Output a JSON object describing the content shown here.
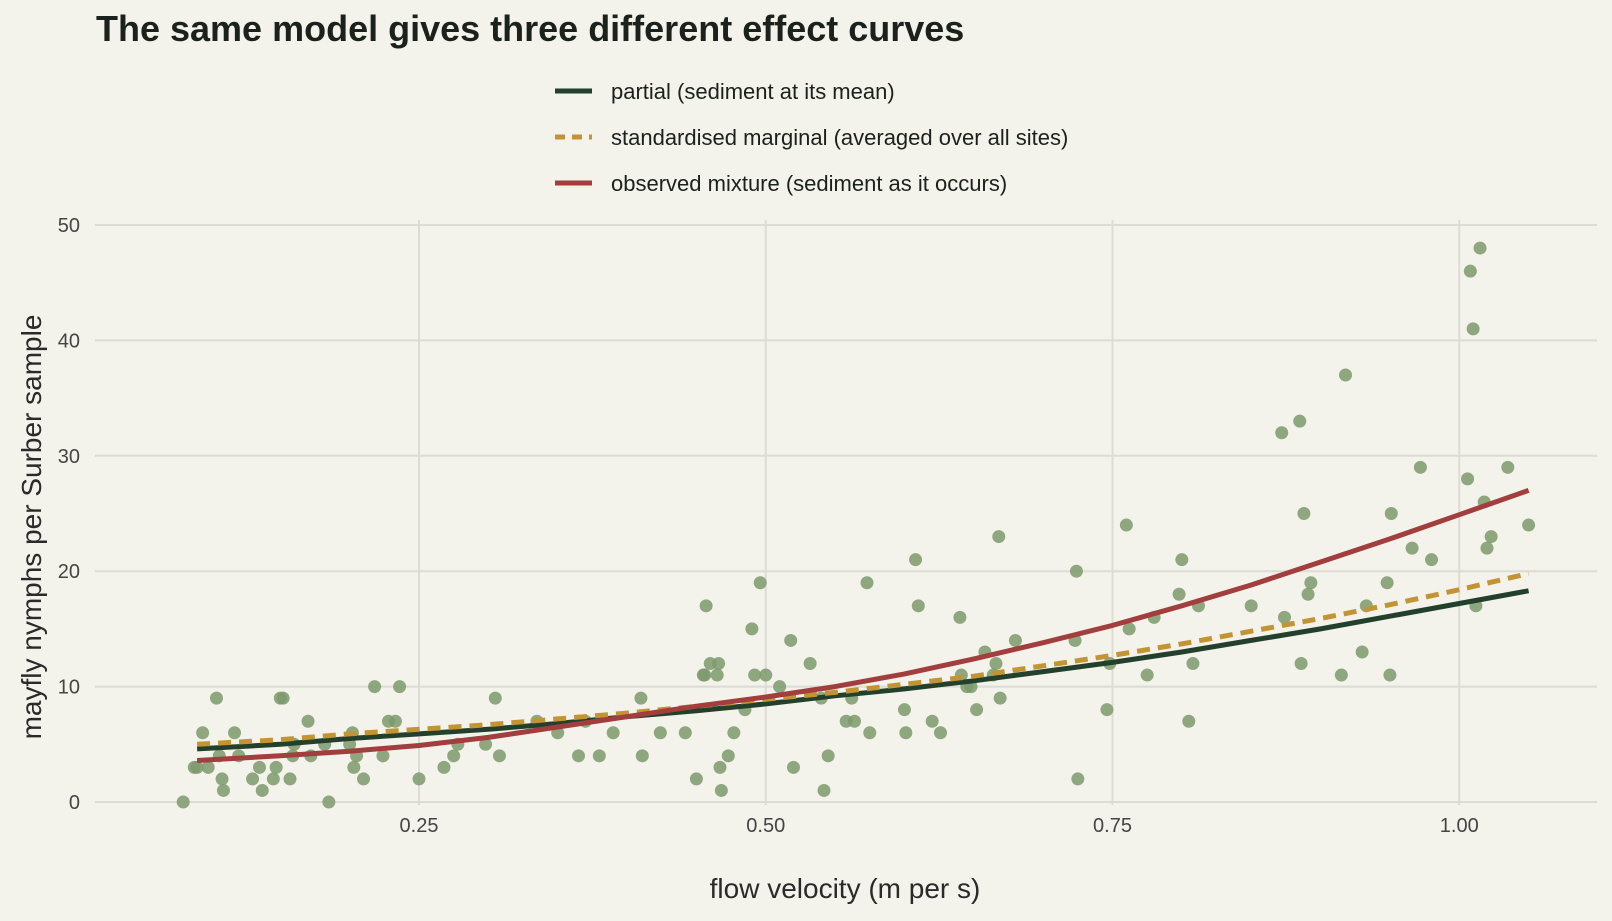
{
  "chart_data": {
    "type": "scatter",
    "title": "The same model gives three different effect curves",
    "xlabel": "flow velocity (m per s)",
    "ylabel": "mayfly nymphs per Surber sample",
    "xlim": [
      0.045,
      1.085
    ],
    "ylim": [
      -1.5,
      51
    ],
    "x_ticks": [
      0.25,
      0.5,
      0.75,
      1.0
    ],
    "x_tick_labels": [
      "0.25",
      "0.50",
      "0.75",
      "1.00"
    ],
    "y_ticks": [
      0,
      10,
      20,
      30,
      40,
      50
    ],
    "y_tick_labels": [
      "0",
      "10",
      "20",
      "30",
      "40",
      "50"
    ],
    "grid": true,
    "legend_position": "top-center",
    "points_color": "#7d9a6c",
    "points": [
      [
        0.08,
        0
      ],
      [
        0.088,
        3
      ],
      [
        0.09,
        3
      ],
      [
        0.094,
        6
      ],
      [
        0.098,
        3
      ],
      [
        0.104,
        9
      ],
      [
        0.106,
        4
      ],
      [
        0.108,
        2
      ],
      [
        0.109,
        1
      ],
      [
        0.117,
        6
      ],
      [
        0.12,
        4
      ],
      [
        0.13,
        2
      ],
      [
        0.135,
        3
      ],
      [
        0.137,
        1
      ],
      [
        0.145,
        2
      ],
      [
        0.147,
        3
      ],
      [
        0.15,
        9
      ],
      [
        0.152,
        9
      ],
      [
        0.157,
        2
      ],
      [
        0.159,
        4
      ],
      [
        0.16,
        5
      ],
      [
        0.17,
        7
      ],
      [
        0.172,
        4
      ],
      [
        0.182,
        5
      ],
      [
        0.185,
        0
      ],
      [
        0.2,
        5
      ],
      [
        0.202,
        6
      ],
      [
        0.203,
        3
      ],
      [
        0.205,
        4
      ],
      [
        0.21,
        2
      ],
      [
        0.218,
        10
      ],
      [
        0.224,
        4
      ],
      [
        0.228,
        7
      ],
      [
        0.233,
        7
      ],
      [
        0.236,
        10
      ],
      [
        0.25,
        2
      ],
      [
        0.268,
        3
      ],
      [
        0.275,
        4
      ],
      [
        0.278,
        5
      ],
      [
        0.298,
        5
      ],
      [
        0.305,
        9
      ],
      [
        0.308,
        4
      ],
      [
        0.335,
        7
      ],
      [
        0.35,
        6
      ],
      [
        0.365,
        4
      ],
      [
        0.37,
        7
      ],
      [
        0.38,
        4
      ],
      [
        0.39,
        6
      ],
      [
        0.41,
        9
      ],
      [
        0.411,
        4
      ],
      [
        0.424,
        6
      ],
      [
        0.442,
        6
      ],
      [
        0.45,
        2
      ],
      [
        0.455,
        11
      ],
      [
        0.456,
        11
      ],
      [
        0.457,
        17
      ],
      [
        0.46,
        12
      ],
      [
        0.465,
        11
      ],
      [
        0.466,
        12
      ],
      [
        0.467,
        3
      ],
      [
        0.468,
        1
      ],
      [
        0.473,
        4
      ],
      [
        0.477,
        6
      ],
      [
        0.485,
        8
      ],
      [
        0.49,
        15
      ],
      [
        0.492,
        11
      ],
      [
        0.496,
        19
      ],
      [
        0.5,
        11
      ],
      [
        0.51,
        10
      ],
      [
        0.518,
        14
      ],
      [
        0.52,
        3
      ],
      [
        0.532,
        12
      ],
      [
        0.54,
        9
      ],
      [
        0.542,
        1
      ],
      [
        0.545,
        4
      ],
      [
        0.558,
        7
      ],
      [
        0.562,
        9
      ],
      [
        0.564,
        7
      ],
      [
        0.573,
        19
      ],
      [
        0.575,
        6
      ],
      [
        0.6,
        8
      ],
      [
        0.601,
        6
      ],
      [
        0.608,
        21
      ],
      [
        0.61,
        17
      ],
      [
        0.62,
        7
      ],
      [
        0.626,
        6
      ],
      [
        0.64,
        16
      ],
      [
        0.641,
        11
      ],
      [
        0.645,
        10
      ],
      [
        0.648,
        10
      ],
      [
        0.652,
        8
      ],
      [
        0.658,
        13
      ],
      [
        0.664,
        11
      ],
      [
        0.666,
        12
      ],
      [
        0.668,
        23
      ],
      [
        0.669,
        9
      ],
      [
        0.68,
        14
      ],
      [
        0.723,
        14
      ],
      [
        0.724,
        20
      ],
      [
        0.725,
        2
      ],
      [
        0.746,
        8
      ],
      [
        0.748,
        12
      ],
      [
        0.76,
        24
      ],
      [
        0.762,
        15
      ],
      [
        0.775,
        11
      ],
      [
        0.78,
        16
      ],
      [
        0.798,
        18
      ],
      [
        0.8,
        21
      ],
      [
        0.805,
        7
      ],
      [
        0.808,
        12
      ],
      [
        0.812,
        17
      ],
      [
        0.85,
        17
      ],
      [
        0.872,
        32
      ],
      [
        0.874,
        16
      ],
      [
        0.885,
        33
      ],
      [
        0.886,
        12
      ],
      [
        0.888,
        25
      ],
      [
        0.891,
        18
      ],
      [
        0.893,
        19
      ],
      [
        0.915,
        11
      ],
      [
        0.918,
        37
      ],
      [
        0.93,
        13
      ],
      [
        0.933,
        17
      ],
      [
        0.948,
        19
      ],
      [
        0.95,
        11
      ],
      [
        0.951,
        25
      ],
      [
        0.966,
        22
      ],
      [
        0.972,
        29
      ],
      [
        0.98,
        21
      ],
      [
        1.006,
        28
      ],
      [
        1.008,
        46
      ],
      [
        1.01,
        41
      ],
      [
        1.012,
        17
      ],
      [
        1.015,
        48
      ],
      [
        1.018,
        26
      ],
      [
        1.02,
        22
      ],
      [
        1.023,
        23
      ],
      [
        1.035,
        29
      ],
      [
        1.05,
        24
      ]
    ],
    "series": [
      {
        "name": "partial (sediment at its mean)",
        "color": "#22402b",
        "dash": "solid",
        "x": [
          0.09,
          0.15,
          0.2,
          0.25,
          0.3,
          0.35,
          0.4,
          0.45,
          0.5,
          0.55,
          0.6,
          0.65,
          0.7,
          0.75,
          0.8,
          0.85,
          0.9,
          0.95,
          1.0,
          1.05
        ],
        "values": [
          4.6,
          5.0,
          5.5,
          5.9,
          6.3,
          6.8,
          7.4,
          7.9,
          8.5,
          9.2,
          9.8,
          10.5,
          11.3,
          12.1,
          13.0,
          14.0,
          15.0,
          16.1,
          17.2,
          18.3
        ]
      },
      {
        "name": "standardised marginal (averaged over all sites)",
        "color": "#c39434",
        "dash": "dashed",
        "x": [
          0.09,
          0.15,
          0.2,
          0.25,
          0.3,
          0.35,
          0.4,
          0.45,
          0.5,
          0.55,
          0.6,
          0.65,
          0.7,
          0.75,
          0.8,
          0.85,
          0.9,
          0.95,
          1.0,
          1.05
        ],
        "values": [
          5.0,
          5.4,
          5.9,
          6.3,
          6.7,
          7.2,
          7.7,
          8.3,
          8.9,
          9.5,
          10.2,
          10.9,
          11.8,
          12.7,
          13.7,
          14.8,
          15.9,
          17.1,
          18.4,
          19.8
        ]
      },
      {
        "name": "observed mixture (sediment as it occurs)",
        "color": "#a23e3e",
        "dash": "solid",
        "x": [
          0.09,
          0.15,
          0.2,
          0.25,
          0.3,
          0.35,
          0.4,
          0.45,
          0.5,
          0.55,
          0.6,
          0.65,
          0.7,
          0.75,
          0.8,
          0.85,
          0.9,
          0.95,
          1.0,
          1.05
        ],
        "values": [
          3.6,
          4.0,
          4.4,
          4.9,
          5.6,
          6.5,
          7.4,
          8.3,
          9.1,
          10.0,
          11.1,
          12.4,
          13.8,
          15.3,
          17.0,
          18.8,
          20.8,
          22.8,
          24.9,
          27.0
        ]
      }
    ]
  }
}
